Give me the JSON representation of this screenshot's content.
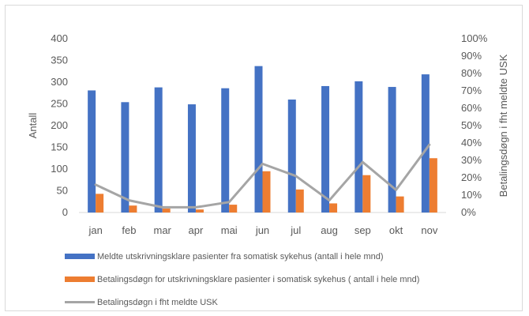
{
  "chart_data": {
    "type": "bar",
    "categories": [
      "jan",
      "feb",
      "mar",
      "apr",
      "mai",
      "jun",
      "jul",
      "aug",
      "sep",
      "okt",
      "nov"
    ],
    "series": [
      {
        "name": "Meldte utskrivningsklare pasienter fra somatisk sykehus (antall i hele mnd)",
        "type": "bar",
        "axis": "left",
        "color": "#4472C4",
        "values": [
          281,
          254,
          288,
          249,
          286,
          337,
          260,
          291,
          302,
          289,
          318
        ]
      },
      {
        "name": "Betalingsdøgn for utskrivningsklare pasienter i somatisk sykehus ( antall i hele mnd)",
        "type": "bar",
        "axis": "left",
        "color": "#ED7D31",
        "values": [
          43,
          16,
          9,
          7,
          18,
          95,
          53,
          21,
          86,
          37,
          125
        ]
      },
      {
        "name": "Betalingsdøgn i fht meldte USK",
        "type": "line",
        "axis": "right",
        "color": "#A5A5A5",
        "values": [
          0.16,
          0.07,
          0.03,
          0.03,
          0.06,
          0.28,
          0.21,
          0.07,
          0.29,
          0.13,
          0.39
        ]
      }
    ],
    "ylabel": "Antall",
    "y2label": "Betalingsdøgn i fht meldte USK",
    "ylim": [
      0,
      400
    ],
    "y2lim": [
      0,
      1
    ],
    "yticks": [
      "0",
      "50",
      "100",
      "150",
      "200",
      "250",
      "300",
      "350",
      "400"
    ],
    "y2ticks": [
      "0%",
      "10%",
      "20%",
      "30%",
      "40%",
      "50%",
      "60%",
      "70%",
      "80%",
      "90%",
      "100%"
    ],
    "grid": false,
    "legend_position": "bottom"
  }
}
